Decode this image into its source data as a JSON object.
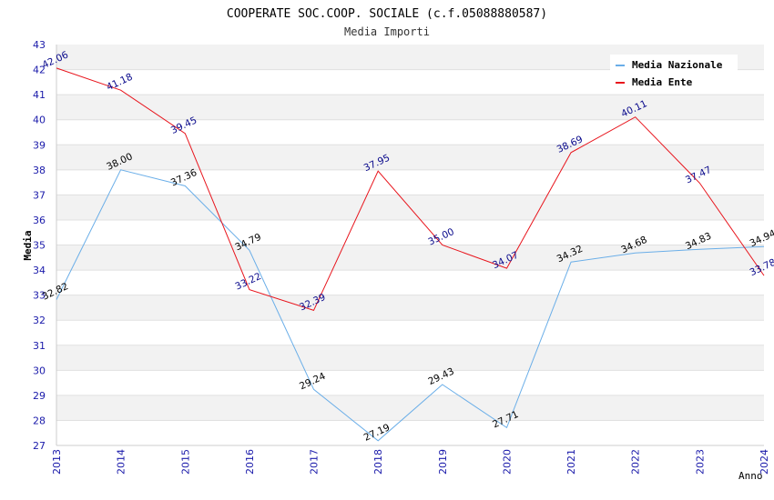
{
  "chart_data": {
    "type": "line",
    "title": "COOPERATE SOC.COOP. SOCIALE (c.f.05088880587)",
    "subtitle": "Media Importi",
    "xlabel": "Anno",
    "ylabel": "Media",
    "x": [
      2013,
      2014,
      2015,
      2016,
      2017,
      2018,
      2019,
      2020,
      2021,
      2022,
      2023,
      2024
    ],
    "ylim": [
      27,
      43
    ],
    "yticks": [
      27,
      28,
      29,
      30,
      31,
      32,
      33,
      34,
      35,
      36,
      37,
      38,
      39,
      40,
      41,
      42,
      43
    ],
    "legend_position": "top-right",
    "grid": true,
    "series": [
      {
        "name": "Media Nazionale",
        "color": "#6aaee8",
        "label_color": "#000000",
        "values": [
          32.82,
          38.0,
          37.36,
          34.79,
          29.24,
          27.19,
          29.43,
          27.71,
          34.32,
          34.68,
          34.83,
          34.94
        ],
        "labels": [
          "32.82",
          "38.00",
          "37.36",
          "34.79",
          "29.24",
          "27.19",
          "29.43",
          "27.71",
          "34.32",
          "34.68",
          "34.83",
          "34.94"
        ]
      },
      {
        "name": "Media Ente",
        "color": "#e8141c",
        "label_color": "#0a0a8c",
        "values": [
          42.06,
          41.18,
          39.45,
          33.22,
          32.39,
          37.95,
          35.0,
          34.07,
          38.69,
          40.11,
          37.47,
          33.78
        ],
        "labels": [
          "42.06",
          "41.18",
          "39.45",
          "33.22",
          "32.39",
          "37.95",
          "35.00",
          "34.07",
          "38.69",
          "40.11",
          "37.47",
          "33.78"
        ]
      }
    ]
  }
}
